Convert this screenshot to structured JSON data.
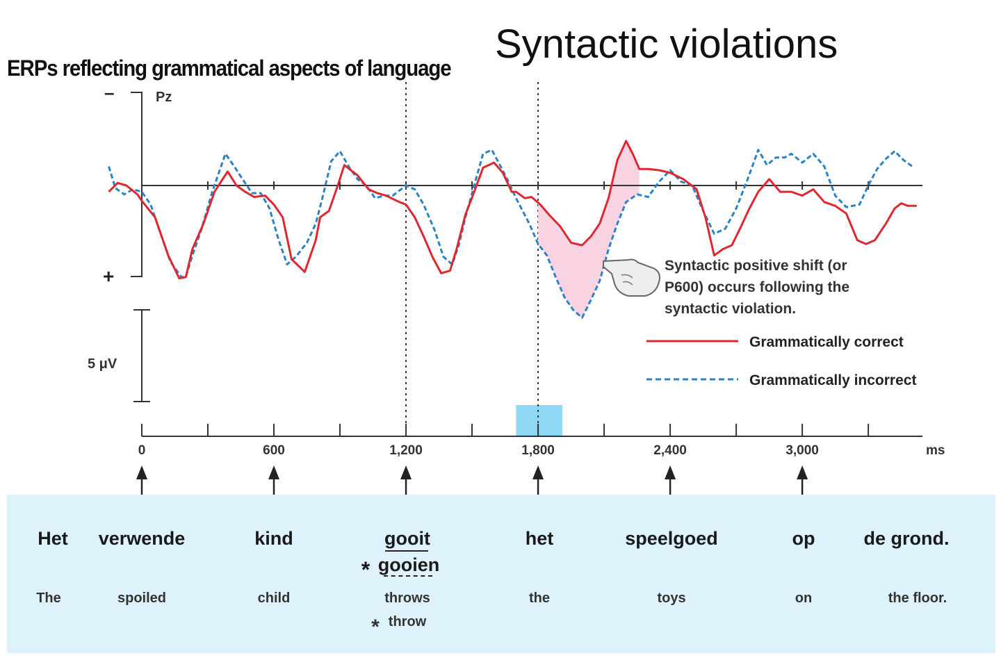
{
  "slide_title": "Syntactic violations",
  "figure_title": "ERPs reflecting grammatical aspects of language",
  "chart_data": {
    "type": "line",
    "electrode_label": "Pz",
    "polarity_labels": {
      "negative": "–",
      "positive": "+"
    },
    "scale_bar_label": "5 μV",
    "x_unit": "ms",
    "x_ticks": [
      "0",
      "600",
      "1,200",
      "1,800",
      "2,400",
      "3,000"
    ],
    "x_tick_values": [
      0,
      600,
      1200,
      1800,
      2400,
      3000
    ],
    "minor_ticks": [
      0,
      300,
      600,
      900,
      1200,
      1500,
      1800,
      2100,
      2400,
      2700,
      3000,
      3300
    ],
    "xlim": [
      -150,
      3520
    ],
    "ylim": [
      -4.5,
      11
    ],
    "y_axis_inverted": true,
    "dotted_markers": [
      1200,
      1800
    ],
    "highlight_window": [
      1700,
      1910
    ],
    "highlight_color": "#8fd8f5",
    "shaded_region": [
      1800,
      2260
    ],
    "shaded_color": "#f9d3e1",
    "annotation": "Syntactic positive shift (or P600) occurs following the syntactic violation.",
    "annotation_lines": [
      "Syntactic positive shift (or",
      "P600) occurs following the",
      "syntactic violation."
    ],
    "series": [
      {
        "name": "Grammatically correct",
        "color": "#e0262f",
        "style": "solid",
        "x": [
          -150,
          -110,
          -70,
          -20,
          0,
          60,
          120,
          170,
          200,
          230,
          280,
          330,
          390,
          430,
          470,
          510,
          560,
          600,
          640,
          680,
          740,
          790,
          810,
          850,
          890,
          920,
          980,
          1030,
          1070,
          1110,
          1170,
          1200,
          1240,
          1280,
          1320,
          1360,
          1400,
          1430,
          1470,
          1510,
          1550,
          1600,
          1640,
          1680,
          1700,
          1740,
          1770,
          1810,
          1850,
          1900,
          1950,
          2000,
          2040,
          2080,
          2120,
          2160,
          2200,
          2230,
          2260,
          2300,
          2350,
          2400,
          2460,
          2520,
          2560,
          2600,
          2640,
          2680,
          2720,
          2760,
          2800,
          2850,
          2900,
          2950,
          3000,
          3050,
          3100,
          3150,
          3200,
          3250,
          3290,
          3330,
          3380,
          3420,
          3450,
          3480,
          3520
        ],
        "y": [
          0.5,
          -0.2,
          0,
          0.7,
          1.2,
          2.5,
          5.5,
          7.3,
          7.2,
          5,
          3,
          0.5,
          -1.1,
          0,
          0.5,
          0.9,
          0.8,
          1.5,
          2.5,
          5.8,
          6.8,
          4.3,
          2.5,
          2,
          0,
          -1.6,
          -0.8,
          0.3,
          0.6,
          0.8,
          1.3,
          1.5,
          2.5,
          4,
          5.6,
          6.9,
          6.7,
          5,
          2.3,
          0.5,
          -1.4,
          -1.8,
          -1,
          0.5,
          0.5,
          1,
          0.9,
          1.5,
          2.3,
          3.2,
          4.5,
          4.7,
          4,
          3,
          1,
          -2,
          -3.5,
          -2.5,
          -1.3,
          -1.3,
          -1.2,
          -1,
          -0.5,
          0.3,
          2.5,
          5.5,
          5,
          4.7,
          3.3,
          1.8,
          0.5,
          -0.5,
          0.5,
          0.5,
          0.8,
          0.3,
          1.3,
          1.6,
          2.2,
          4.3,
          4.6,
          4.3,
          3,
          1.8,
          1.4,
          1.6,
          1.6
        ]
      },
      {
        "name": "Grammatically incorrect",
        "color": "#2a83c4",
        "style": "dashed",
        "x": [
          -150,
          -120,
          -80,
          -40,
          0,
          40,
          80,
          130,
          180,
          200,
          230,
          270,
          320,
          380,
          420,
          450,
          500,
          540,
          580,
          620,
          660,
          700,
          750,
          790,
          820,
          860,
          900,
          940,
          980,
          1020,
          1060,
          1100,
          1140,
          1200,
          1240,
          1280,
          1330,
          1370,
          1410,
          1440,
          1470,
          1510,
          1550,
          1590,
          1630,
          1660,
          1700,
          1760,
          1800,
          1840,
          1880,
          1920,
          1960,
          2000,
          2040,
          2080,
          2120,
          2160,
          2200,
          2250,
          2300,
          2350,
          2400,
          2450,
          2500,
          2550,
          2600,
          2650,
          2700,
          2750,
          2800,
          2840,
          2880,
          2920,
          2950,
          3000,
          3050,
          3100,
          3150,
          3200,
          3260,
          3300,
          3340,
          3380,
          3420,
          3460,
          3500
        ],
        "y": [
          -1.5,
          0.2,
          0.7,
          0.3,
          0.5,
          1.5,
          3.5,
          6,
          7.2,
          7.2,
          5.5,
          3.5,
          0.5,
          -2.5,
          -1.5,
          -0.7,
          0.6,
          0.6,
          1.8,
          4.2,
          6.2,
          5.6,
          4.5,
          3,
          1,
          -1.9,
          -2.7,
          -1.5,
          -0.5,
          0,
          1,
          0.8,
          0.8,
          0,
          0.3,
          1.5,
          3.5,
          5.6,
          6.2,
          4.7,
          2.5,
          0,
          -2.5,
          -2.8,
          -1.5,
          -0.5,
          1,
          3,
          4.6,
          5.5,
          7.2,
          8.8,
          9.8,
          10.4,
          9,
          7.5,
          5,
          3,
          1.3,
          0.7,
          0.9,
          -0.3,
          -1.2,
          -0.3,
          0,
          2,
          3.8,
          3.4,
          1.8,
          -0.4,
          -2.8,
          -1.6,
          -2.2,
          -2.2,
          -2.5,
          -1.8,
          -2.5,
          -1.5,
          0.8,
          1.7,
          1.5,
          0,
          -1.3,
          -2.1,
          -2.7,
          -2,
          -1.5
        ]
      }
    ]
  },
  "sentence": {
    "dutch_words": [
      "Het",
      "verwende",
      "kind",
      "gooit",
      "het",
      "speelgoed",
      "op",
      "de grond."
    ],
    "english_words": [
      "The",
      "spoiled",
      "child",
      "throws",
      "the",
      "toys",
      "on",
      "the floor."
    ],
    "violation_word_dutch": "gooien",
    "violation_word_english": "throw",
    "violation_marker": "*"
  }
}
